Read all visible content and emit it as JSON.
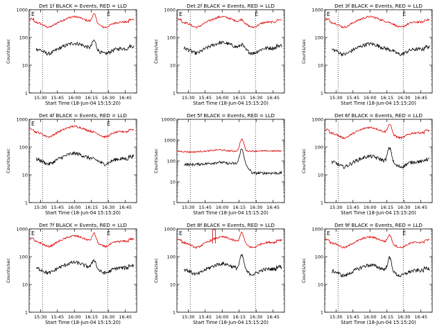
{
  "chart_data": [
    {
      "type": "line",
      "title": "Det 1f BLACK = Events, RED = LLD",
      "ylabel": "Counts/sec",
      "xlabel": "Start Time (18-Jun-04 15:15:20)",
      "yscale": "log",
      "ylim": [
        1,
        1000
      ],
      "y_ticks": [
        "1",
        "10",
        "100",
        "1000"
      ],
      "x_ticks": [
        "15:30",
        "15:45",
        "16:00",
        "16:15",
        "16:30",
        "16:45"
      ],
      "markers": [
        "E",
        "E"
      ],
      "series": [
        {
          "name": "LLD",
          "color": "#dd0000",
          "profile": "std",
          "base": 360,
          "start": -0.02,
          "spike": 1.0
        },
        {
          "name": "Events",
          "color": "#000000",
          "profile": "std",
          "base": 40,
          "start": 0.03,
          "spike": 1.0
        }
      ]
    },
    {
      "type": "line",
      "title": "Det 2f BLACK = Events, RED = LLD",
      "ylabel": "Counts/sec",
      "xlabel": "Start Time (18-Jun-04 15:15:20)",
      "yscale": "log",
      "ylim": [
        1,
        1000
      ],
      "y_ticks": [
        "1",
        "10",
        "100",
        "1000"
      ],
      "x_ticks": [
        "15:30",
        "15:45",
        "16:00",
        "16:15",
        "16:30",
        "16:45"
      ],
      "markers": [
        "E",
        "E"
      ],
      "series": [
        {
          "name": "LLD",
          "color": "#dd0000",
          "profile": "std",
          "base": 360,
          "start": -0.02,
          "spike": 0.3
        },
        {
          "name": "Events",
          "color": "#000000",
          "profile": "std",
          "base": 42,
          "start": 0.03,
          "spike": 0.4
        }
      ]
    },
    {
      "type": "line",
      "title": "Det 3f BLACK = Events, RED = LLD",
      "ylabel": "Counts/sec",
      "xlabel": "Start Time (18-Jun-04 15:15:20)",
      "yscale": "log",
      "ylim": [
        1,
        1000
      ],
      "y_ticks": [
        "1",
        "10",
        "100",
        "1000"
      ],
      "x_ticks": [
        "15:30",
        "15:45",
        "16:00",
        "16:15",
        "16:30",
        "16:45"
      ],
      "markers": [
        "E",
        "E"
      ],
      "series": [
        {
          "name": "LLD",
          "color": "#dd0000",
          "profile": "std",
          "base": 360,
          "start": -0.02,
          "spike": 0.0
        },
        {
          "name": "Events",
          "color": "#000000",
          "profile": "std",
          "base": 38,
          "start": 0.03,
          "spike": 0.0
        }
      ]
    },
    {
      "type": "line",
      "title": "Det 4f BLACK = Events, RED = LLD",
      "ylabel": "Counts/sec",
      "xlabel": "Start Time (18-Jun-04 15:15:20)",
      "yscale": "log",
      "ylim": [
        1,
        1000
      ],
      "y_ticks": [
        "1",
        "10",
        "100",
        "1000"
      ],
      "x_ticks": [
        "15:30",
        "15:45",
        "16:00",
        "16:15",
        "16:30",
        "16:45"
      ],
      "markers": [
        "E",
        "E"
      ],
      "series": [
        {
          "name": "LLD",
          "color": "#dd0000",
          "profile": "std",
          "base": 360,
          "start": -0.02,
          "spike": 0.0
        },
        {
          "name": "Events",
          "color": "#000000",
          "profile": "std",
          "base": 38,
          "start": 0.03,
          "spike": 0.0
        }
      ]
    },
    {
      "type": "line",
      "title": "Det 5f BLACK = Events, RED = LLD",
      "ylabel": "Counts/sec",
      "xlabel": "Start Time (18-Jun-04 15:15:20)",
      "yscale": "log",
      "ylim": [
        1,
        10000
      ],
      "y_ticks": [
        "1",
        "10",
        "100",
        "1000",
        "10000"
      ],
      "x_ticks": [
        "15:30",
        "15:45",
        "16:00",
        "16:15",
        "16:30",
        "16:45"
      ],
      "markers": [],
      "series": [
        {
          "name": "LLD",
          "color": "#dd0000",
          "profile": "flat",
          "base": 300,
          "start": 0.0,
          "spike": 2.6
        },
        {
          "name": "Events",
          "color": "#000000",
          "profile": "flat",
          "base": 75,
          "start": 0.03,
          "spike": 4.0
        }
      ]
    },
    {
      "type": "line",
      "title": "Det 6f BLACK = Events, RED = LLD",
      "ylabel": "Counts/sec",
      "xlabel": "Start Time (18-Jun-04 15:15:20)",
      "yscale": "log",
      "ylim": [
        1,
        1000
      ],
      "y_ticks": [
        "1",
        "10",
        "100",
        "1000"
      ],
      "x_ticks": [
        "15:30",
        "15:45",
        "16:00",
        "16:15",
        "16:30",
        "16:45"
      ],
      "markers": [],
      "series": [
        {
          "name": "LLD",
          "color": "#dd0000",
          "profile": "std",
          "base": 330,
          "start": -0.02,
          "spike": 1.1
        },
        {
          "name": "Events",
          "color": "#000000",
          "profile": "std",
          "base": 30,
          "start": 0.03,
          "spike": 2.2
        }
      ]
    },
    {
      "type": "line",
      "title": "Det 7f BLACK = Events, RED = LLD",
      "ylabel": "Counts/sec",
      "xlabel": "Start Time (18-Jun-04 15:15:20)",
      "yscale": "log",
      "ylim": [
        1,
        1000
      ],
      "y_ticks": [
        "1",
        "10",
        "100",
        "1000"
      ],
      "x_ticks": [
        "15:30",
        "15:45",
        "16:00",
        "16:15",
        "16:30",
        "16:45"
      ],
      "markers": [
        "E",
        "E"
      ],
      "series": [
        {
          "name": "LLD",
          "color": "#dd0000",
          "profile": "std",
          "base": 360,
          "start": -0.02,
          "spike": 1.0
        },
        {
          "name": "Events",
          "color": "#000000",
          "profile": "std",
          "base": 40,
          "start": 0.03,
          "spike": 1.0
        }
      ]
    },
    {
      "type": "line",
      "title": "Det 8f BLACK = Events, RED = LLD",
      "ylabel": "Counts/sec",
      "xlabel": "Start Time (18-Jun-04 15:15:20)",
      "yscale": "log",
      "ylim": [
        1,
        1000
      ],
      "y_ticks": [
        "1",
        "10",
        "100",
        "1000"
      ],
      "x_ticks": [
        "15:30",
        "15:45",
        "16:00",
        "16:15",
        "16:30",
        "16:45"
      ],
      "markers": [
        "E"
      ],
      "series": [
        {
          "name": "LLD",
          "color": "#dd0000",
          "profile": "std8",
          "base": 330,
          "start": 0.0,
          "spike": 1.3
        },
        {
          "name": "Events",
          "color": "#000000",
          "profile": "std8",
          "base": 36,
          "start": 0.03,
          "spike": 2.2
        }
      ]
    },
    {
      "type": "line",
      "title": "Det 9f BLACK = Events, RED = LLD",
      "ylabel": "Counts/sec",
      "xlabel": "Start Time (18-Jun-04 15:15:20)",
      "yscale": "log",
      "ylim": [
        1,
        1000
      ],
      "y_ticks": [
        "1",
        "10",
        "100",
        "1000"
      ],
      "x_ticks": [
        "15:30",
        "15:45",
        "16:00",
        "16:15",
        "16:30",
        "16:45"
      ],
      "markers": [
        "E",
        "E"
      ],
      "series": [
        {
          "name": "LLD",
          "color": "#dd0000",
          "profile": "std",
          "base": 330,
          "start": -0.02,
          "spike": 0.9
        },
        {
          "name": "Events",
          "color": "#000000",
          "profile": "std",
          "base": 32,
          "start": 0.03,
          "spike": 1.9
        }
      ]
    }
  ]
}
